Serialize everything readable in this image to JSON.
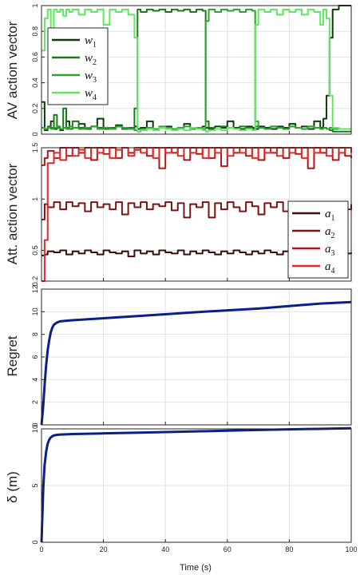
{
  "figure": {
    "x_label": "Time (s)",
    "x_ticks": [
      "0",
      "20",
      "40",
      "60",
      "80",
      "100"
    ]
  },
  "chart_data": [
    {
      "type": "line",
      "ylabel": "AV action vector",
      "xlim": [
        0,
        100
      ],
      "ylim": [
        0,
        1
      ],
      "y_ticks": [
        "0",
        "0.2",
        "0.4",
        "0.6",
        "0.8",
        "1"
      ],
      "legend_position": "top-left",
      "grid": true,
      "step": true,
      "x": [
        0,
        1,
        2,
        3,
        4,
        5,
        6,
        7,
        8,
        9,
        10,
        12,
        14,
        16,
        18,
        20,
        22,
        24,
        26,
        28,
        30,
        31,
        32,
        34,
        36,
        38,
        40,
        42,
        44,
        46,
        48,
        50,
        52,
        53,
        54,
        56,
        58,
        60,
        62,
        64,
        66,
        68,
        69,
        70,
        72,
        74,
        76,
        78,
        80,
        82,
        84,
        86,
        88,
        90,
        91,
        92,
        93,
        94,
        96,
        98,
        100
      ],
      "series": [
        {
          "name": "w1",
          "color": "#0b3d0b",
          "values": [
            0.25,
            0.03,
            0.05,
            0.1,
            0.04,
            0.06,
            0.03,
            0.05,
            0.1,
            0.04,
            0.05,
            0.08,
            0.04,
            0.06,
            0.12,
            0.05,
            0.04,
            0.07,
            0.05,
            0.04,
            0.06,
            0.04,
            0.05,
            0.1,
            0.04,
            0.05,
            0.06,
            0.04,
            0.05,
            0.08,
            0.05,
            0.04,
            0.06,
            0.05,
            0.04,
            0.06,
            0.05,
            0.1,
            0.05,
            0.04,
            0.06,
            0.05,
            0.04,
            0.06,
            0.05,
            0.04,
            0.06,
            0.05,
            0.08,
            0.05,
            0.06,
            0.04,
            0.1,
            0.05,
            0.12,
            0.3,
            0.75,
            0.97,
            1.0,
            1.0,
            1.0
          ]
        },
        {
          "name": "w2",
          "color": "#1a7a1a",
          "values": [
            0.05,
            0.04,
            0.06,
            0.05,
            0.15,
            0.05,
            0.04,
            0.2,
            0.05,
            0.04,
            0.1,
            0.05,
            0.04,
            0.06,
            0.05,
            0.04,
            0.05,
            0.06,
            0.04,
            0.05,
            0.2,
            0.97,
            0.95,
            0.97,
            0.96,
            0.97,
            0.95,
            0.97,
            0.96,
            0.97,
            0.95,
            0.97,
            0.96,
            0.1,
            0.05,
            0.04,
            0.06,
            0.05,
            0.04,
            0.06,
            0.05,
            0.04,
            0.06,
            0.05,
            0.04,
            0.06,
            0.05,
            0.04,
            0.06,
            0.05,
            0.04,
            0.06,
            0.05,
            0.04,
            0.05,
            0.04,
            0.03,
            0.02,
            0.02,
            0.02,
            0.02
          ]
        },
        {
          "name": "w3",
          "color": "#2ea12e",
          "values": [
            0.05,
            0.04,
            0.05,
            0.04,
            0.05,
            0.06,
            0.04,
            0.05,
            0.04,
            0.06,
            0.05,
            0.04,
            0.05,
            0.06,
            0.04,
            0.05,
            0.04,
            0.06,
            0.05,
            0.04,
            0.03,
            0.02,
            0.04,
            0.05,
            0.04,
            0.06,
            0.05,
            0.04,
            0.05,
            0.06,
            0.04,
            0.05,
            0.04,
            0.88,
            0.97,
            0.95,
            0.97,
            0.96,
            0.97,
            0.95,
            0.97,
            0.96,
            0.1,
            0.05,
            0.04,
            0.06,
            0.05,
            0.04,
            0.06,
            0.05,
            0.04,
            0.06,
            0.05,
            0.04,
            0.05,
            0.04,
            0.05,
            0.04,
            0.04,
            0.04,
            0.04
          ]
        },
        {
          "name": "w4",
          "color": "#5ee85e",
          "values": [
            0.65,
            0.9,
            0.97,
            0.75,
            0.97,
            0.95,
            0.97,
            0.92,
            0.97,
            0.95,
            0.97,
            0.93,
            0.97,
            0.95,
            0.97,
            0.85,
            0.97,
            0.95,
            0.97,
            0.93,
            0.75,
            0.02,
            0.03,
            0.04,
            0.03,
            0.05,
            0.04,
            0.03,
            0.04,
            0.03,
            0.05,
            0.04,
            0.03,
            0.02,
            0.03,
            0.04,
            0.03,
            0.05,
            0.04,
            0.03,
            0.04,
            0.03,
            0.85,
            0.97,
            0.95,
            0.97,
            0.93,
            0.97,
            0.95,
            0.97,
            0.93,
            0.97,
            0.95,
            0.85,
            0.97,
            0.9,
            0.3,
            0.05,
            0.04,
            0.04,
            0.04
          ]
        }
      ]
    },
    {
      "type": "line",
      "ylabel": "Att. action vector",
      "xlim": [
        0,
        100
      ],
      "ylim": [
        0.2,
        1.5
      ],
      "y_ticks": [
        "0.2",
        "0.5",
        "1",
        "1.5"
      ],
      "y_tick_values": [
        0.2,
        0.5,
        1,
        1.5
      ],
      "legend_position": "bottom-right",
      "grid": true,
      "step": true,
      "x": [
        0,
        1,
        2,
        4,
        6,
        8,
        10,
        12,
        14,
        16,
        18,
        20,
        22,
        24,
        26,
        28,
        30,
        32,
        34,
        36,
        38,
        40,
        42,
        44,
        46,
        48,
        50,
        52,
        54,
        56,
        58,
        60,
        62,
        64,
        66,
        68,
        70,
        72,
        74,
        76,
        78,
        80,
        82,
        84,
        86,
        88,
        90,
        92,
        94,
        96,
        98,
        100
      ],
      "series": [
        {
          "name": "a1",
          "color": "#3a0d0d",
          "values": [
            0.45,
            0.46,
            0.49,
            0.48,
            0.5,
            0.46,
            0.49,
            0.47,
            0.5,
            0.48,
            0.46,
            0.5,
            0.48,
            0.47,
            0.49,
            0.44,
            0.5,
            0.47,
            0.49,
            0.46,
            0.5,
            0.48,
            0.47,
            0.5,
            0.46,
            0.49,
            0.47,
            0.5,
            0.48,
            0.46,
            0.49,
            0.47,
            0.5,
            0.48,
            0.46,
            0.49,
            0.47,
            0.5,
            0.48,
            0.46,
            0.49,
            0.47,
            0.5,
            0.48,
            0.46,
            0.49,
            0.47,
            0.5,
            0.46,
            0.49,
            0.47,
            0.48
          ]
        },
        {
          "name": "a2",
          "color": "#7a1212",
          "values": [
            0.8,
            0.95,
            0.92,
            0.97,
            0.9,
            0.97,
            0.93,
            0.96,
            0.88,
            0.97,
            0.92,
            0.95,
            0.9,
            0.97,
            0.85,
            0.96,
            0.92,
            0.97,
            0.9,
            0.95,
            0.93,
            0.97,
            0.89,
            0.96,
            0.82,
            0.95,
            0.92,
            0.97,
            0.82,
            0.96,
            0.9,
            0.97,
            0.92,
            0.88,
            0.97,
            0.93,
            0.85,
            0.96,
            0.92,
            0.97,
            0.88,
            0.95,
            0.93,
            0.97,
            0.9,
            0.96,
            0.92,
            0.97,
            0.93,
            0.96,
            0.9,
            0.95
          ]
        },
        {
          "name": "a3",
          "color": "#b01818",
          "values": [
            1.33,
            1.4,
            1.47,
            1.4,
            1.5,
            1.42,
            1.5,
            1.45,
            1.5,
            1.38,
            1.5,
            1.44,
            1.5,
            1.4,
            1.5,
            1.45,
            1.48,
            1.5,
            1.42,
            1.5,
            1.3,
            1.5,
            1.45,
            1.5,
            1.38,
            1.5,
            1.44,
            1.5,
            1.4,
            1.5,
            1.32,
            1.5,
            1.45,
            1.5,
            1.42,
            1.5,
            1.38,
            1.5,
            1.45,
            1.5,
            1.4,
            1.5,
            1.44,
            1.5,
            1.3,
            1.5,
            1.45,
            1.5,
            1.38,
            1.5,
            1.42,
            1.4
          ]
        },
        {
          "name": "a4",
          "color": "#e02a2a",
          "values": [
            0.2,
            0.6,
            1.35,
            1.45,
            1.38,
            1.5,
            1.42,
            1.48,
            1.4,
            1.5,
            1.45,
            1.5,
            1.4,
            1.48,
            1.5,
            1.42,
            1.5,
            1.45,
            1.5,
            1.4,
            1.5,
            1.45,
            1.5,
            1.42,
            1.5,
            1.45,
            1.5,
            1.4,
            1.5,
            1.45,
            1.5,
            1.42,
            1.5,
            1.45,
            1.5,
            1.4,
            1.5,
            1.45,
            1.5,
            1.42,
            1.5,
            1.45,
            1.5,
            1.4,
            1.5,
            1.45,
            1.5,
            1.42,
            1.5,
            1.45,
            1.5,
            1.45
          ]
        }
      ]
    },
    {
      "type": "line",
      "ylabel": "Regret",
      "xlim": [
        0,
        100
      ],
      "ylim": [
        0,
        12
      ],
      "y_ticks": [
        "0",
        "2",
        "4",
        "6",
        "8",
        "10",
        "12"
      ],
      "grid": true,
      "series": [
        {
          "color": "#0a1f8a",
          "x": [
            0,
            0.5,
            1,
            1.5,
            2,
            2.5,
            3,
            3.5,
            4,
            5,
            6,
            8,
            10,
            20,
            30,
            40,
            50,
            60,
            70,
            80,
            90,
            100
          ],
          "values": [
            0,
            1.5,
            3.5,
            5.3,
            6.6,
            7.5,
            8.2,
            8.6,
            8.85,
            9.05,
            9.15,
            9.2,
            9.25,
            9.42,
            9.6,
            9.78,
            9.96,
            10.12,
            10.28,
            10.5,
            10.72,
            10.85
          ]
        }
      ]
    },
    {
      "type": "line",
      "ylabel": "δ (m)",
      "xlim": [
        0,
        100
      ],
      "ylim": [
        0,
        10
      ],
      "y_ticks": [
        "0",
        "5",
        "10"
      ],
      "grid": true,
      "series": [
        {
          "color": "#0a1f8a",
          "x": [
            0,
            0.3,
            0.6,
            1,
            1.5,
            2,
            2.5,
            3,
            3.5,
            4,
            5,
            6,
            8,
            10,
            20,
            30,
            40,
            50,
            60,
            70,
            80,
            90,
            100
          ],
          "values": [
            0,
            2.5,
            5.0,
            6.8,
            8.0,
            8.7,
            9.05,
            9.25,
            9.35,
            9.42,
            9.47,
            9.5,
            9.52,
            9.54,
            9.6,
            9.66,
            9.72,
            9.78,
            9.84,
            9.9,
            9.96,
            10.0,
            10.05
          ]
        }
      ]
    }
  ]
}
